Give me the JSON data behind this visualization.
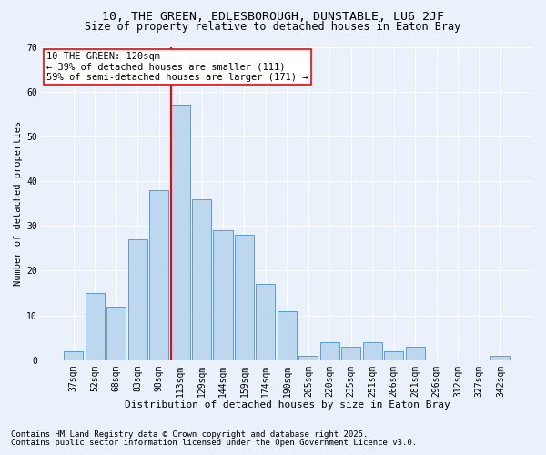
{
  "title_line1": "10, THE GREEN, EDLESBOROUGH, DUNSTABLE, LU6 2JF",
  "title_line2": "Size of property relative to detached houses in Eaton Bray",
  "xlabel": "Distribution of detached houses by size in Eaton Bray",
  "ylabel": "Number of detached properties",
  "categories": [
    "37sqm",
    "52sqm",
    "68sqm",
    "83sqm",
    "98sqm",
    "113sqm",
    "129sqm",
    "144sqm",
    "159sqm",
    "174sqm",
    "190sqm",
    "205sqm",
    "220sqm",
    "235sqm",
    "251sqm",
    "266sqm",
    "281sqm",
    "296sqm",
    "312sqm",
    "327sqm",
    "342sqm"
  ],
  "values": [
    2,
    15,
    12,
    27,
    38,
    57,
    36,
    29,
    28,
    17,
    11,
    1,
    4,
    3,
    4,
    2,
    3,
    0,
    0,
    0,
    1
  ],
  "bar_color": "#bdd7ee",
  "bar_edge_color": "#5b9bd5",
  "vline_color": "red",
  "annotation_text": "10 THE GREEN: 120sqm\n← 39% of detached houses are smaller (111)\n59% of semi-detached houses are larger (171) →",
  "annotation_box_color": "white",
  "annotation_box_edge_color": "red",
  "ylim": [
    0,
    70
  ],
  "yticks": [
    0,
    10,
    20,
    30,
    40,
    50,
    60,
    70
  ],
  "footer_line1": "Contains HM Land Registry data © Crown copyright and database right 2025.",
  "footer_line2": "Contains public sector information licensed under the Open Government Licence v3.0.",
  "bg_color": "#eaf1fb",
  "plot_bg_color": "#eaf1fb",
  "grid_color": "white",
  "title1_fontsize": 9.5,
  "title2_fontsize": 8.5,
  "xlabel_fontsize": 8,
  "ylabel_fontsize": 7.5,
  "tick_fontsize": 7,
  "footer_fontsize": 6.5,
  "annotation_fontsize": 7.5
}
